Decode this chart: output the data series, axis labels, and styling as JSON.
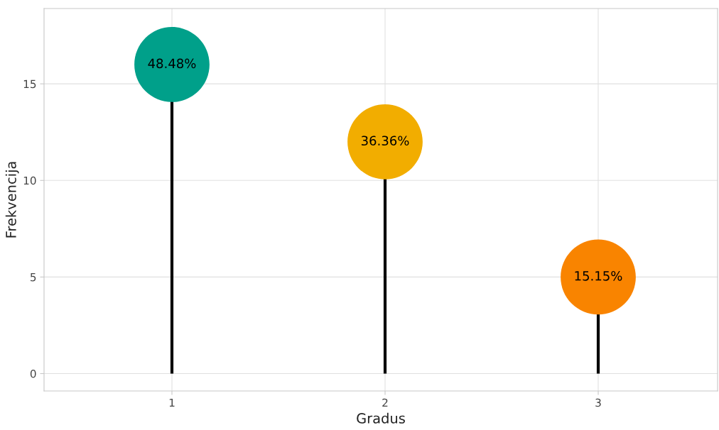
{
  "chart_data": {
    "type": "lollipop",
    "xlabel": "Gradus",
    "ylabel": "Frekvencija",
    "x": [
      1,
      2,
      3
    ],
    "values": [
      16,
      12,
      5
    ],
    "colors": [
      "#00a08a",
      "#f2ad00",
      "#f98400"
    ],
    "annotations": [
      {
        "text": "48.48%",
        "x": 1,
        "y": 16
      },
      {
        "text": "36.36%",
        "x": 2,
        "y": 12
      },
      {
        "text": "15.15%",
        "x": 3,
        "y": 5
      }
    ],
    "xlim": [
      0.4,
      3.56
    ],
    "xticks": [
      1,
      2,
      3
    ],
    "ylim": [
      -0.9,
      18.9
    ],
    "yticks": [
      0,
      5,
      10,
      15
    ],
    "grid": true
  }
}
